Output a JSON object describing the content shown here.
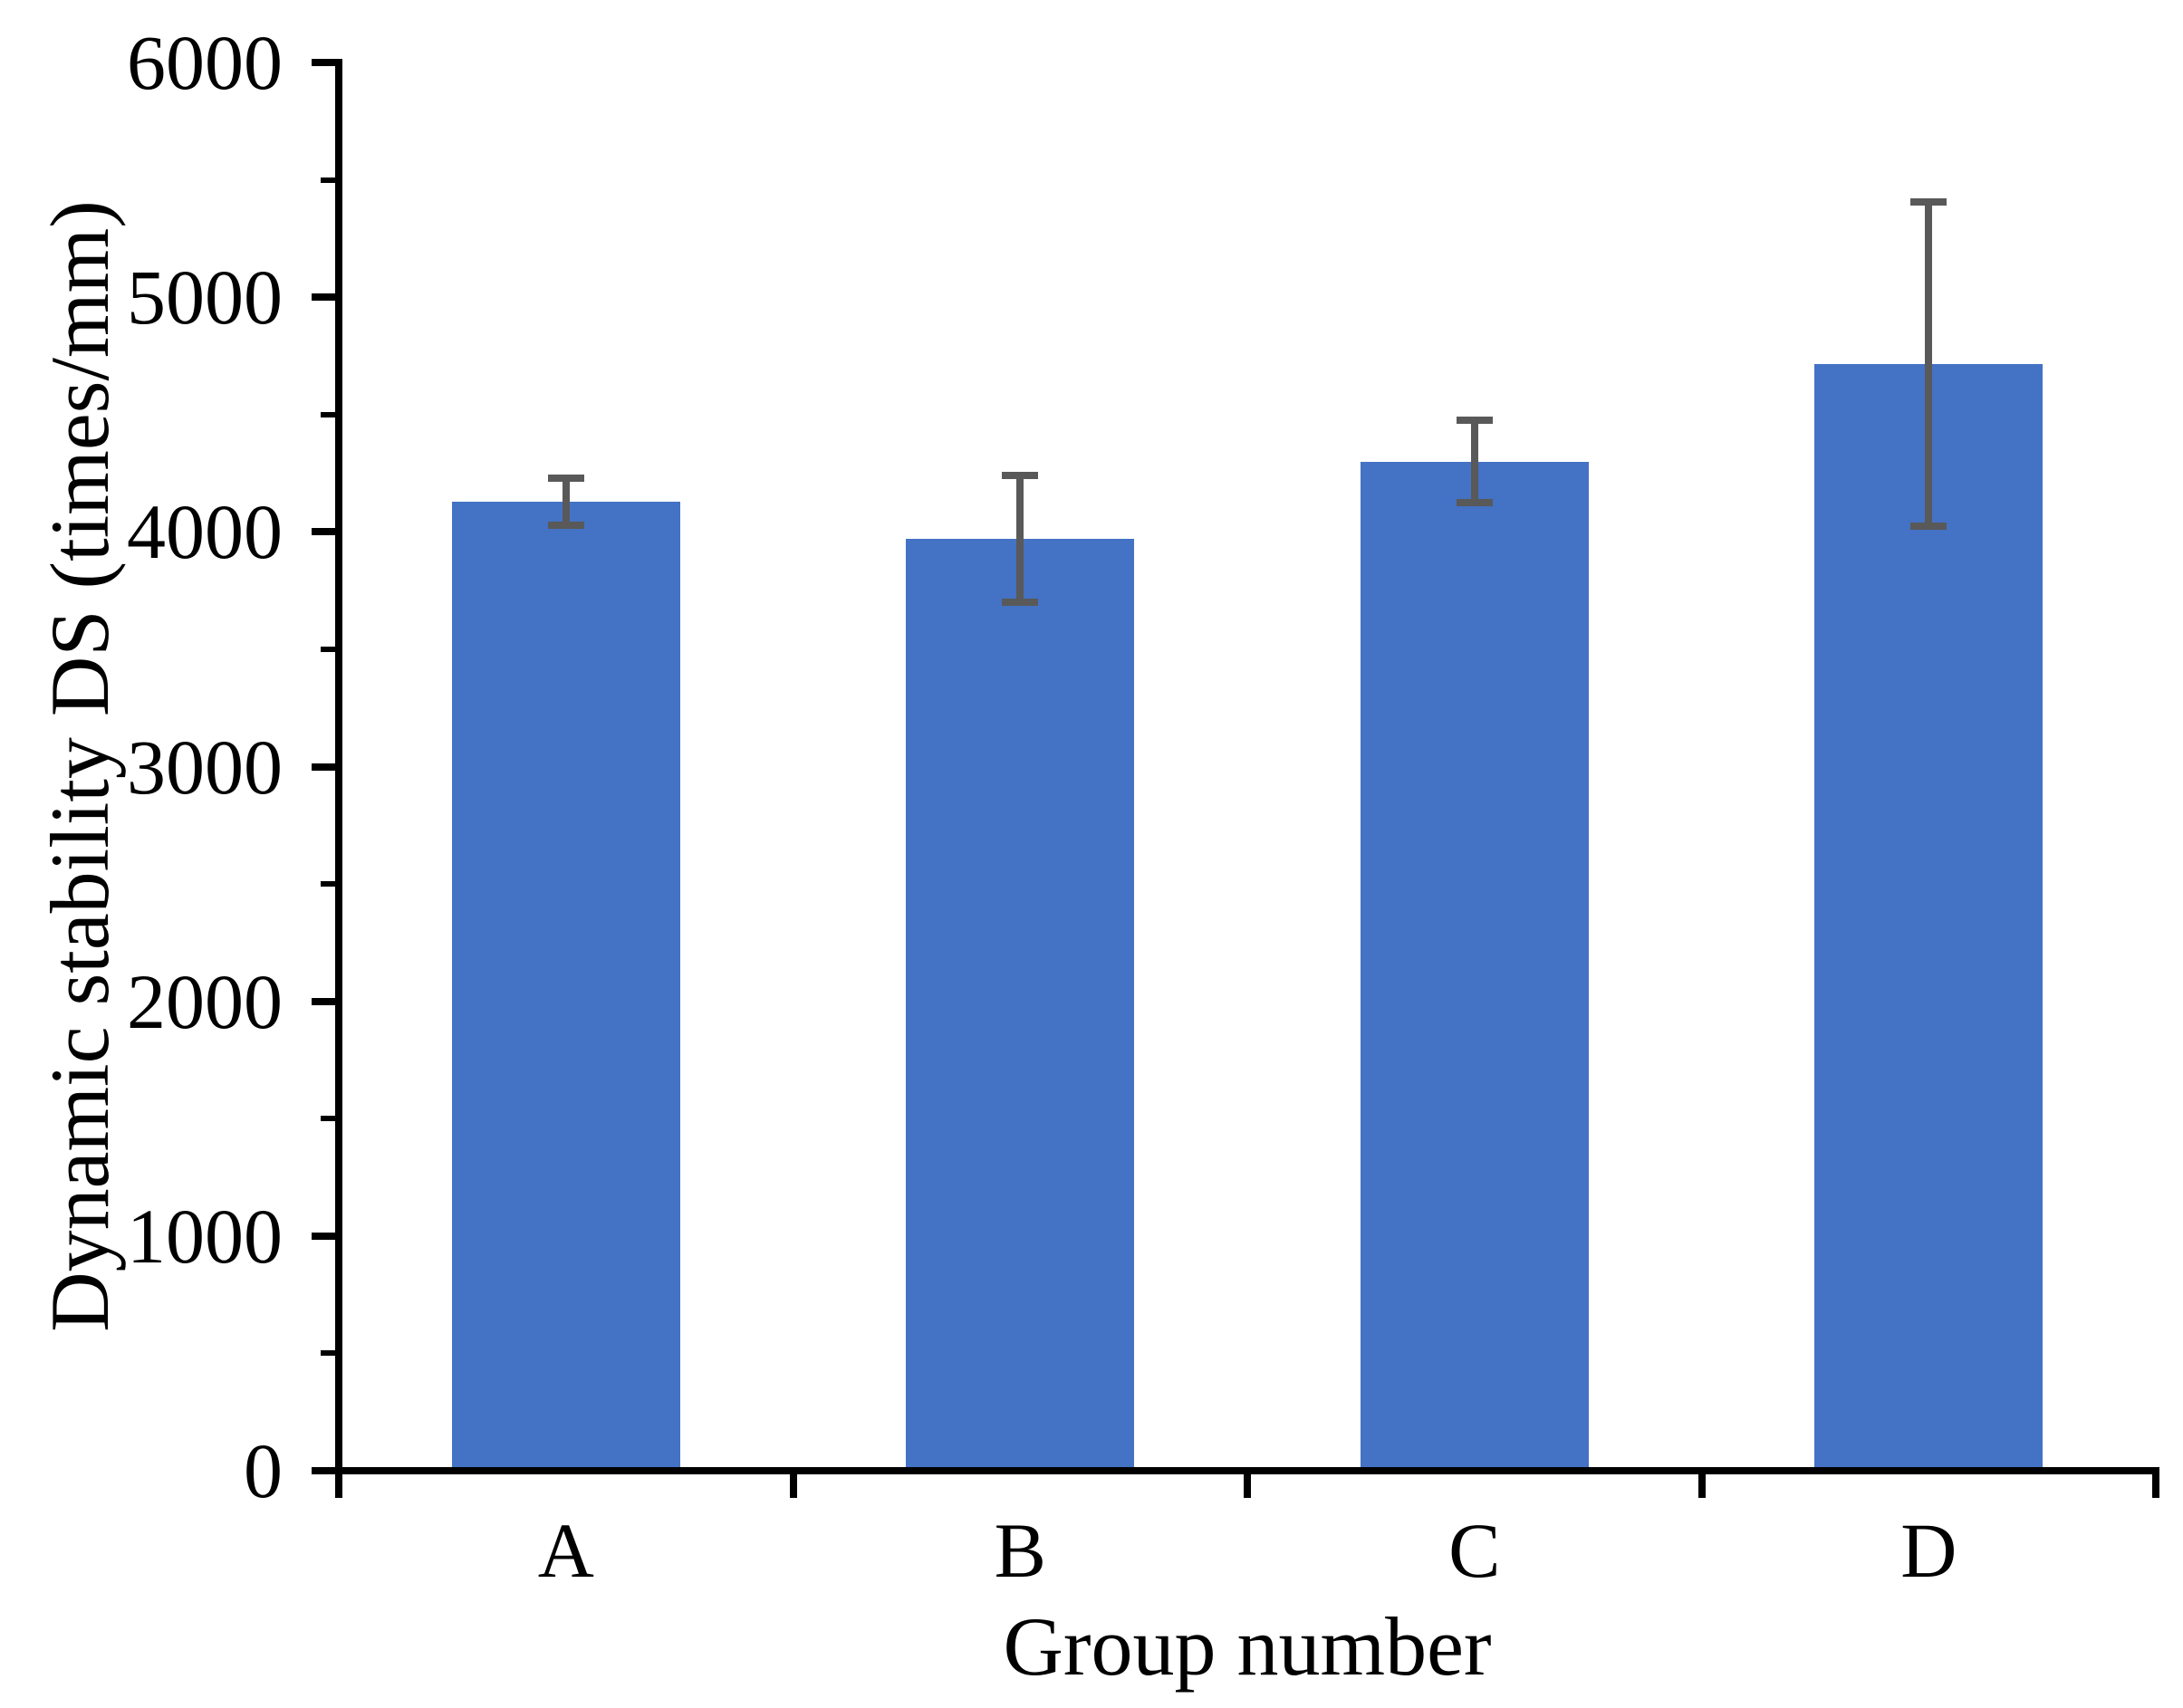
{
  "chart_data": {
    "type": "bar",
    "title": "",
    "xlabel": "Group number",
    "ylabel": "Dynamic stability DS (times/mm)",
    "categories": [
      "A",
      "B",
      "C",
      "D"
    ],
    "series": [
      {
        "name": "Dynamic stability DS",
        "values": [
          4130,
          3970,
          4300,
          4715
        ]
      }
    ],
    "error_bars": [
      100,
      270,
      175,
      690
    ],
    "ylim": [
      0,
      6000
    ],
    "yticks": [
      0,
      1000,
      2000,
      3000,
      4000,
      5000,
      6000
    ],
    "minor_ytick_step": 500,
    "grid": false,
    "legend": false,
    "bar_color": "#4472C4",
    "error_bar_color": "#595959",
    "axis_color": "#000000",
    "background_color": "#FFFFFF"
  }
}
